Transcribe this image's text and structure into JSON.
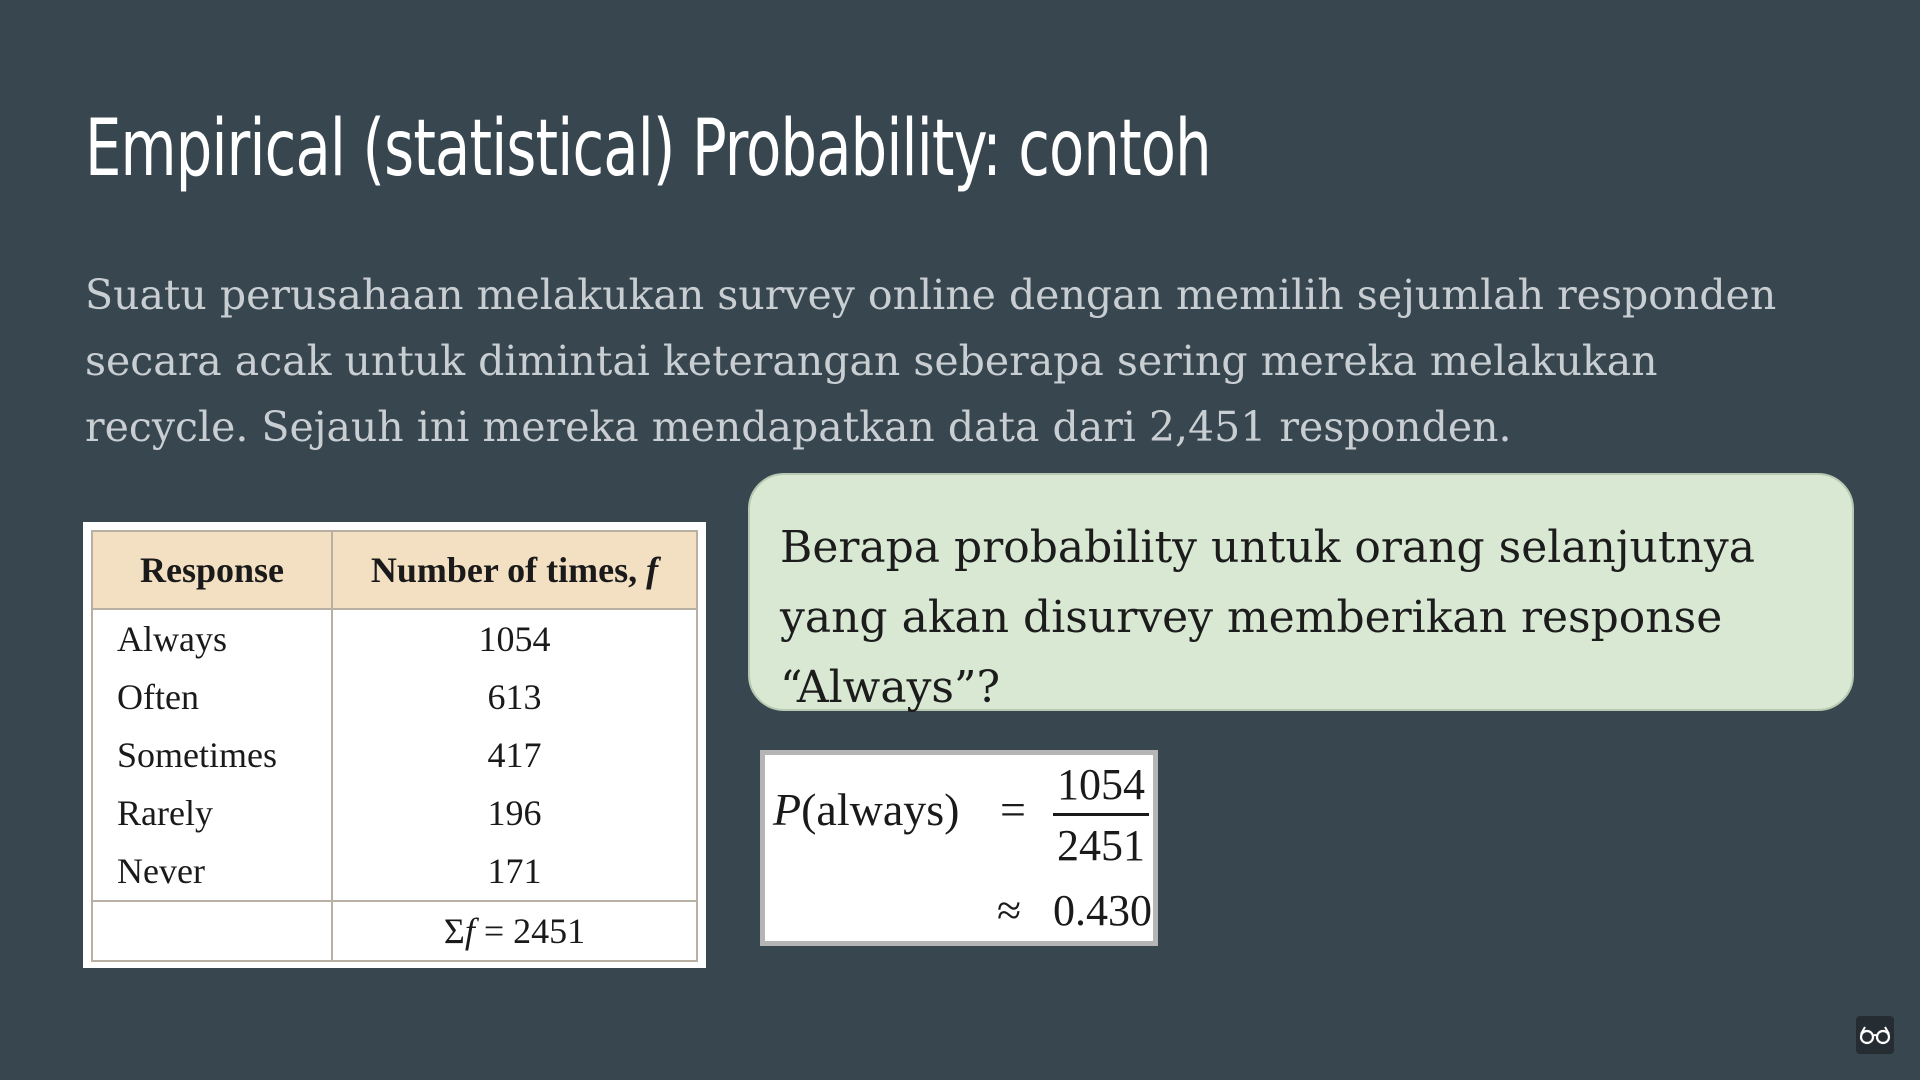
{
  "slide": {
    "title": "Empirical (statistical) Probability: contoh",
    "body": "Suatu perusahaan melakukan survey online dengan memilih sejumlah responden secara acak untuk dimintai keterangan seberapa sering mereka melakukan recycle. Sejauh ini mereka mendapatkan data dari 2,451 responden.",
    "question": "Berapa probability untuk orang selanjutnya yang akan disurvey memberikan response “Always”?"
  },
  "table": {
    "header_response": "Response",
    "header_count": "Number of times, ",
    "header_count_var": "f",
    "rows": [
      {
        "response": "Always",
        "count": "1054"
      },
      {
        "response": "Often",
        "count": "613"
      },
      {
        "response": "Sometimes",
        "count": "417"
      },
      {
        "response": "Rarely",
        "count": "196"
      },
      {
        "response": "Never",
        "count": "171"
      }
    ],
    "sum_label": "Σ",
    "sum_var": "f",
    "sum_eq": " = 2451"
  },
  "formula": {
    "lhs_var": "P",
    "lhs_arg": "(always)",
    "eq": "=",
    "numerator": "1054",
    "denominator": "2451",
    "approx": "≈",
    "approx_value": "0.430"
  },
  "colors": {
    "background": "#37464f",
    "table_header": "#f3dfc2",
    "question_box": "#d8e8d3"
  },
  "icons": {
    "corner": "glasses-icon"
  }
}
